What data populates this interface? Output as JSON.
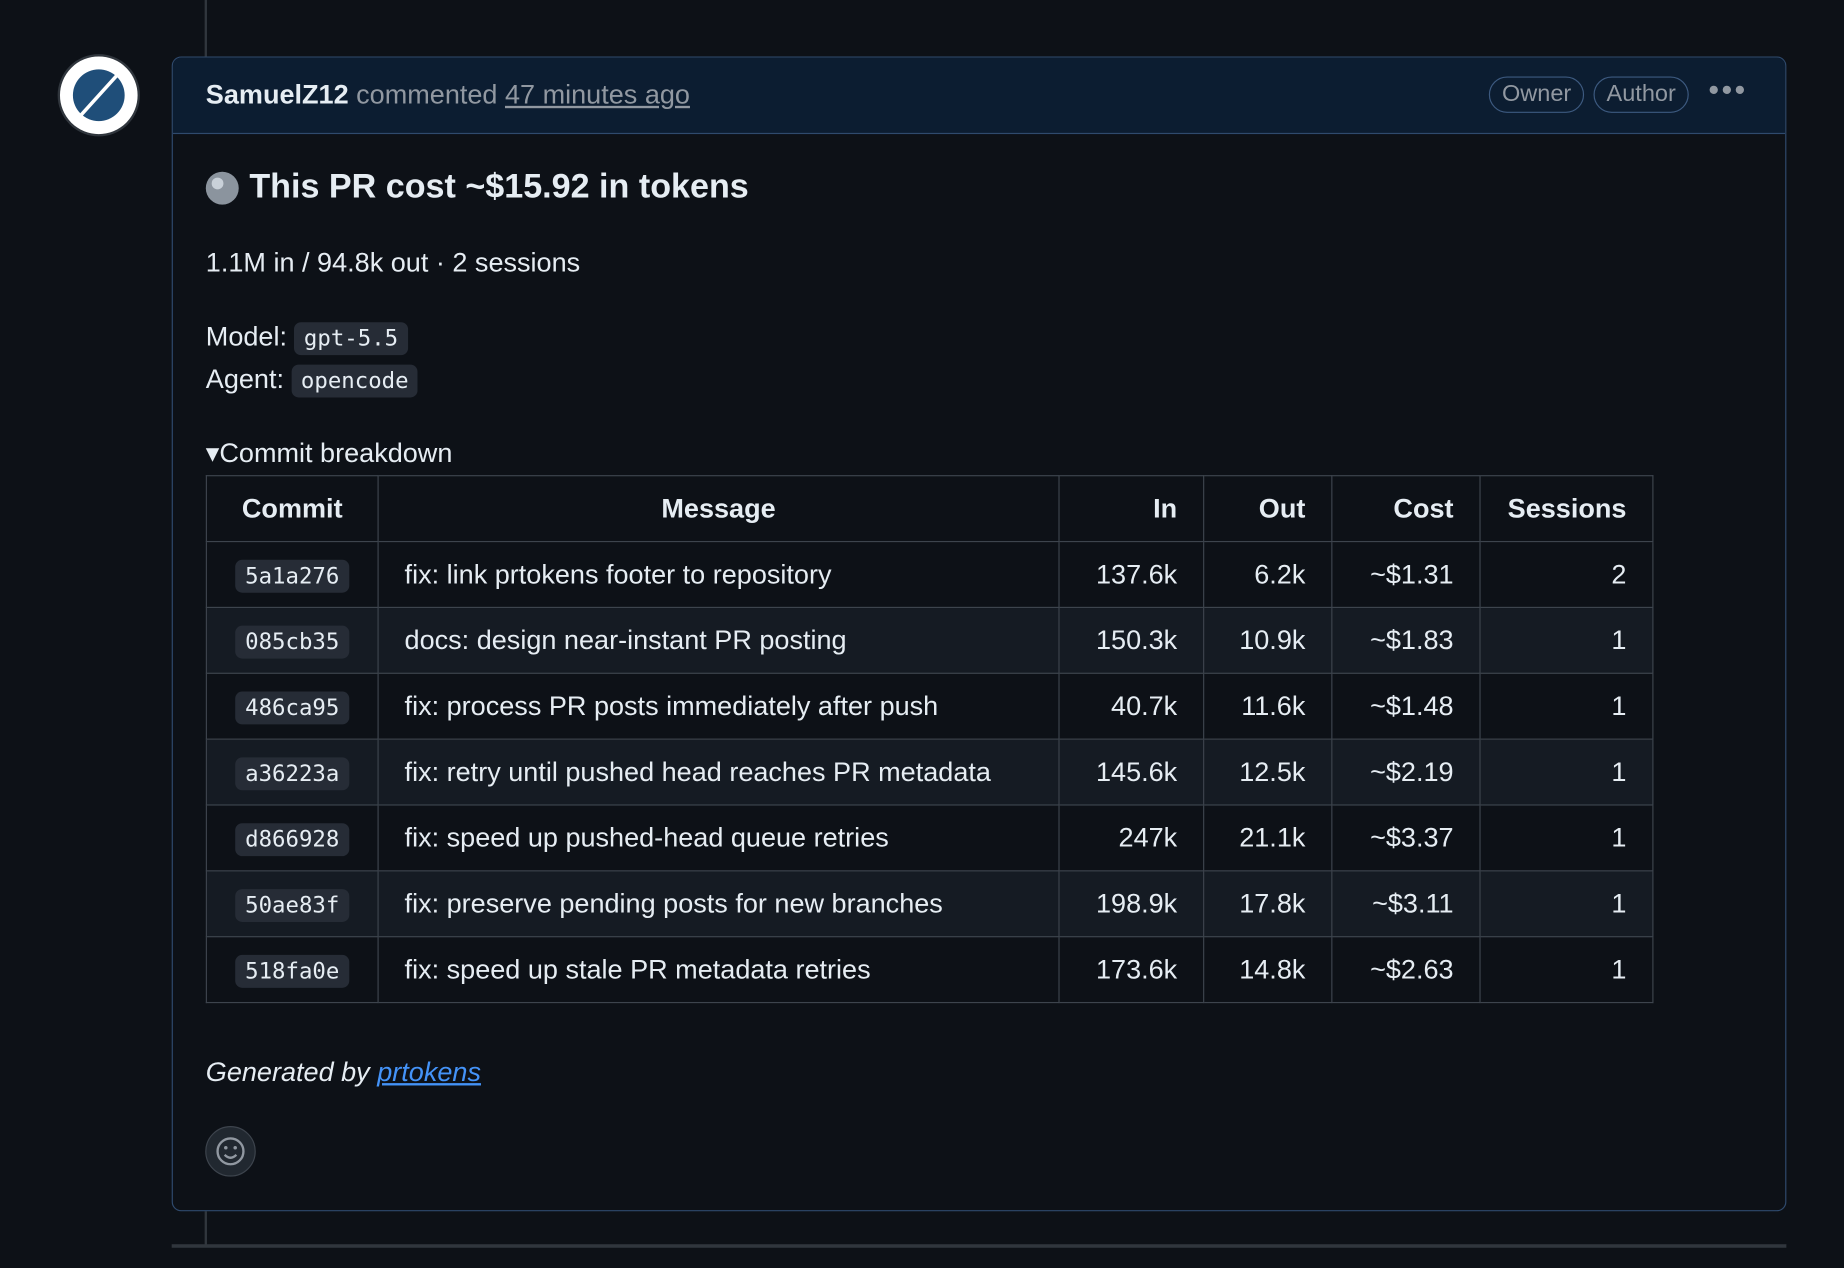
{
  "header": {
    "author": "SamuelZ12",
    "action": "commented",
    "time": "47 minutes ago",
    "badges": [
      "Owner",
      "Author"
    ]
  },
  "body": {
    "title": "This PR cost ~$15.92 in tokens",
    "summary": "1.1M in / 94.8k out · 2 sessions",
    "model_label": "Model:",
    "model": "gpt-5.5",
    "agent_label": "Agent:",
    "agent": "opencode",
    "details_summary": "Commit breakdown",
    "table": {
      "headers": [
        "Commit",
        "Message",
        "In",
        "Out",
        "Cost",
        "Sessions"
      ],
      "rows": [
        [
          "5a1a276",
          "fix: link prtokens footer to repository",
          "137.6k",
          "6.2k",
          "~$1.31",
          "2"
        ],
        [
          "085cb35",
          "docs: design near-instant PR posting",
          "150.3k",
          "10.9k",
          "~$1.83",
          "1"
        ],
        [
          "486ca95",
          "fix: process PR posts immediately after push",
          "40.7k",
          "11.6k",
          "~$1.48",
          "1"
        ],
        [
          "a36223a",
          "fix: retry until pushed head reaches PR metadata",
          "145.6k",
          "12.5k",
          "~$2.19",
          "1"
        ],
        [
          "d866928",
          "fix: speed up pushed-head queue retries",
          "247k",
          "21.1k",
          "~$3.37",
          "1"
        ],
        [
          "50ae83f",
          "fix: preserve pending posts for new branches",
          "198.9k",
          "17.8k",
          "~$3.11",
          "1"
        ],
        [
          "518fa0e",
          "fix: speed up stale PR metadata retries",
          "173.6k",
          "14.8k",
          "~$2.63",
          "1"
        ]
      ]
    },
    "footer_text": "Generated by",
    "footer_link": "prtokens"
  }
}
